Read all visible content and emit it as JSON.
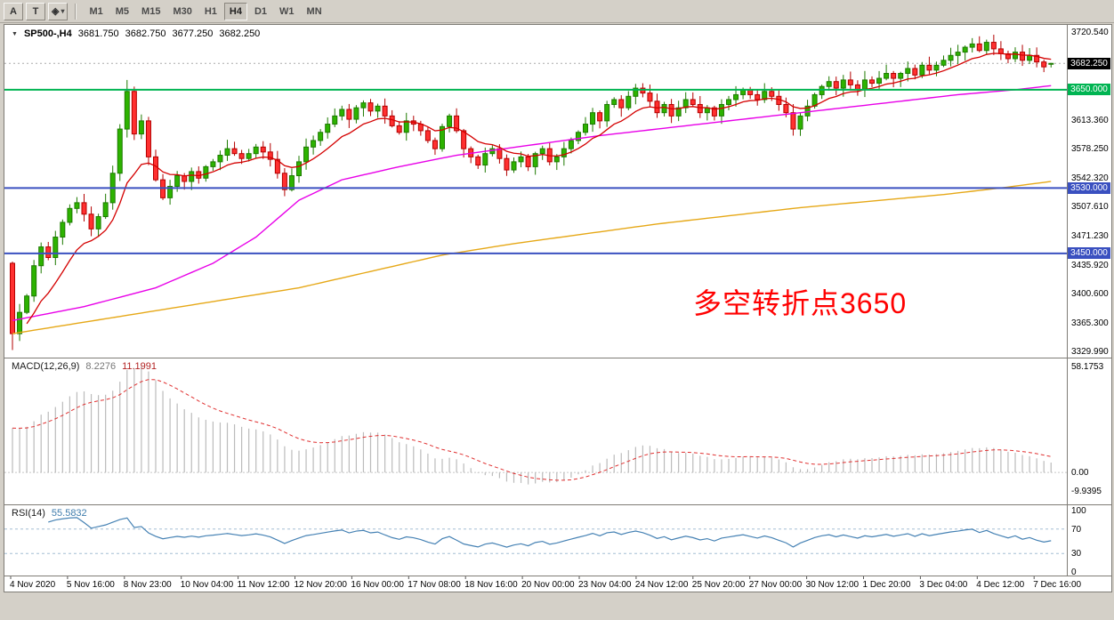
{
  "toolbar": {
    "tool_buttons": [
      {
        "name": "arrow-tool",
        "label": "A"
      },
      {
        "name": "text-tool",
        "label": "T"
      },
      {
        "name": "shapes-dropdown",
        "label": "◈",
        "caret": "▾"
      }
    ],
    "timeframes": [
      "M1",
      "M5",
      "M15",
      "M30",
      "H1",
      "H4",
      "D1",
      "W1",
      "MN"
    ],
    "active_timeframe": "H4"
  },
  "chart": {
    "collapse_icon": "▼",
    "symbol_title": "SP500-,H4",
    "ohlc": {
      "open": "3681.750",
      "high": "3682.750",
      "low": "3677.250",
      "close": "3682.250"
    },
    "annotation": {
      "text": "多空转折点3650",
      "color": "#ff0000"
    },
    "axis": {
      "price_labels": [
        "3720.540",
        "3613.360",
        "3578.250",
        "3542.320",
        "3507.610",
        "3471.230",
        "3435.920",
        "3400.600",
        "3365.300",
        "3329.990"
      ],
      "badges": [
        {
          "name": "current-price-badge",
          "text": "3682.250",
          "price": 3682.25,
          "bg": "#000000",
          "fg": "#ffffff"
        },
        {
          "name": "hline-3650-badge",
          "text": "3650.000",
          "price": 3650,
          "bg": "#00b452",
          "fg": "#ffffff"
        },
        {
          "name": "hline-3530-badge",
          "text": "3530.000",
          "price": 3530,
          "bg": "#3a50c0",
          "fg": "#ffffff"
        },
        {
          "name": "hline-3450-badge",
          "text": "3450.000",
          "price": 3450,
          "bg": "#3a50c0",
          "fg": "#ffffff"
        }
      ]
    },
    "macd": {
      "label": "MACD(12,26,9)",
      "value_main": "8.2276",
      "value_signal": "11.1991",
      "axis_top": "58.1753",
      "axis_zero": "0.00",
      "axis_bottom": "-9.9395"
    },
    "rsi": {
      "label": "RSI(14)",
      "value": "55.5832",
      "axis": [
        "100",
        "70",
        "30",
        "0"
      ]
    }
  },
  "chart_data": {
    "type": "candlestick",
    "symbol": "SP500-",
    "timeframe": "H4",
    "price_domain": [
      3326,
      3726
    ],
    "first_open": 3438,
    "first_low": 3332,
    "spike_index": 16,
    "spike_high": 3662,
    "last_candle": {
      "o": 3681.75,
      "h": 3682.75,
      "l": 3677.25,
      "c": 3682.25
    },
    "closes": [
      3352,
      3378,
      3398,
      3435,
      3458,
      3445,
      3470,
      3488,
      3505,
      3512,
      3498,
      3480,
      3495,
      3512,
      3548,
      3602,
      3648,
      3596,
      3612,
      3568,
      3540,
      3518,
      3532,
      3545,
      3538,
      3550,
      3542,
      3556,
      3562,
      3570,
      3578,
      3572,
      3566,
      3572,
      3580,
      3574,
      3565,
      3548,
      3528,
      3545,
      3562,
      3580,
      3588,
      3598,
      3608,
      3618,
      3626,
      3614,
      3628,
      3634,
      3624,
      3630,
      3618,
      3606,
      3598,
      3612,
      3608,
      3600,
      3588,
      3578,
      3605,
      3618,
      3600,
      3578,
      3568,
      3558,
      3572,
      3578,
      3566,
      3552,
      3562,
      3568,
      3556,
      3572,
      3578,
      3562,
      3568,
      3578,
      3588,
      3598,
      3608,
      3622,
      3612,
      3632,
      3638,
      3628,
      3642,
      3652,
      3646,
      3636,
      3622,
      3632,
      3618,
      3628,
      3638,
      3632,
      3622,
      3628,
      3618,
      3632,
      3638,
      3644,
      3650,
      3644,
      3638,
      3648,
      3642,
      3632,
      3622,
      3602,
      3618,
      3630,
      3644,
      3654,
      3660,
      3652,
      3662,
      3656,
      3650,
      3662,
      3658,
      3664,
      3670,
      3664,
      3670,
      3676,
      3668,
      3680,
      3674,
      3680,
      3686,
      3692,
      3696,
      3702,
      3706,
      3698,
      3708,
      3700,
      3694,
      3688,
      3696,
      3686,
      3692,
      3684,
      3678,
      3682.25
    ],
    "hlines": [
      {
        "price": 3650,
        "color": "#00b452"
      },
      {
        "price": 3530,
        "color": "#3a50c0"
      },
      {
        "price": 3450,
        "color": "#3a50c0"
      }
    ],
    "ma_fast": {
      "color": "#d40000",
      "period": 10
    },
    "ma_medium": {
      "color": "#e800e8",
      "anchors": [
        [
          0,
          3368
        ],
        [
          10,
          3385
        ],
        [
          20,
          3408
        ],
        [
          28,
          3438
        ],
        [
          34,
          3470
        ],
        [
          40,
          3515
        ],
        [
          46,
          3540
        ],
        [
          54,
          3556
        ],
        [
          62,
          3570
        ],
        [
          72,
          3582
        ],
        [
          82,
          3594
        ],
        [
          92,
          3604
        ],
        [
          102,
          3614
        ],
        [
          112,
          3624
        ],
        [
          122,
          3634
        ],
        [
          132,
          3644
        ],
        [
          140,
          3650
        ],
        [
          145,
          3655
        ]
      ]
    },
    "ma_slow": {
      "color": "#e6a817",
      "anchors": [
        [
          0,
          3352
        ],
        [
          10,
          3366
        ],
        [
          20,
          3380
        ],
        [
          30,
          3394
        ],
        [
          40,
          3408
        ],
        [
          50,
          3428
        ],
        [
          60,
          3448
        ],
        [
          70,
          3462
        ],
        [
          80,
          3474
        ],
        [
          90,
          3486
        ],
        [
          100,
          3496
        ],
        [
          110,
          3506
        ],
        [
          120,
          3514
        ],
        [
          130,
          3522
        ],
        [
          138,
          3530
        ],
        [
          145,
          3538
        ]
      ]
    },
    "macd": {
      "fast": 12,
      "slow": 26,
      "signal": 9,
      "peak": 58.1753,
      "hist_color": "#bbbbbb",
      "signal_color": "#e03030"
    },
    "rsi": {
      "period": 14,
      "color": "#4682b4",
      "levels": [
        70,
        30
      ],
      "level_color": "#a3bdd3"
    },
    "x_labels": [
      "4 Nov 2020",
      "5 Nov 16:00",
      "8 Nov 23:00",
      "10 Nov 04:00",
      "11 Nov 12:00",
      "12 Nov 20:00",
      "16 Nov 00:00",
      "17 Nov 08:00",
      "18 Nov 16:00",
      "20 Nov 00:00",
      "23 Nov 04:00",
      "24 Nov 12:00",
      "25 Nov 20:00",
      "27 Nov 00:00",
      "30 Nov 12:00",
      "1 Dec 20:00",
      "3 Dec 04:00",
      "4 Dec 12:00",
      "7 Dec 16:00"
    ]
  }
}
